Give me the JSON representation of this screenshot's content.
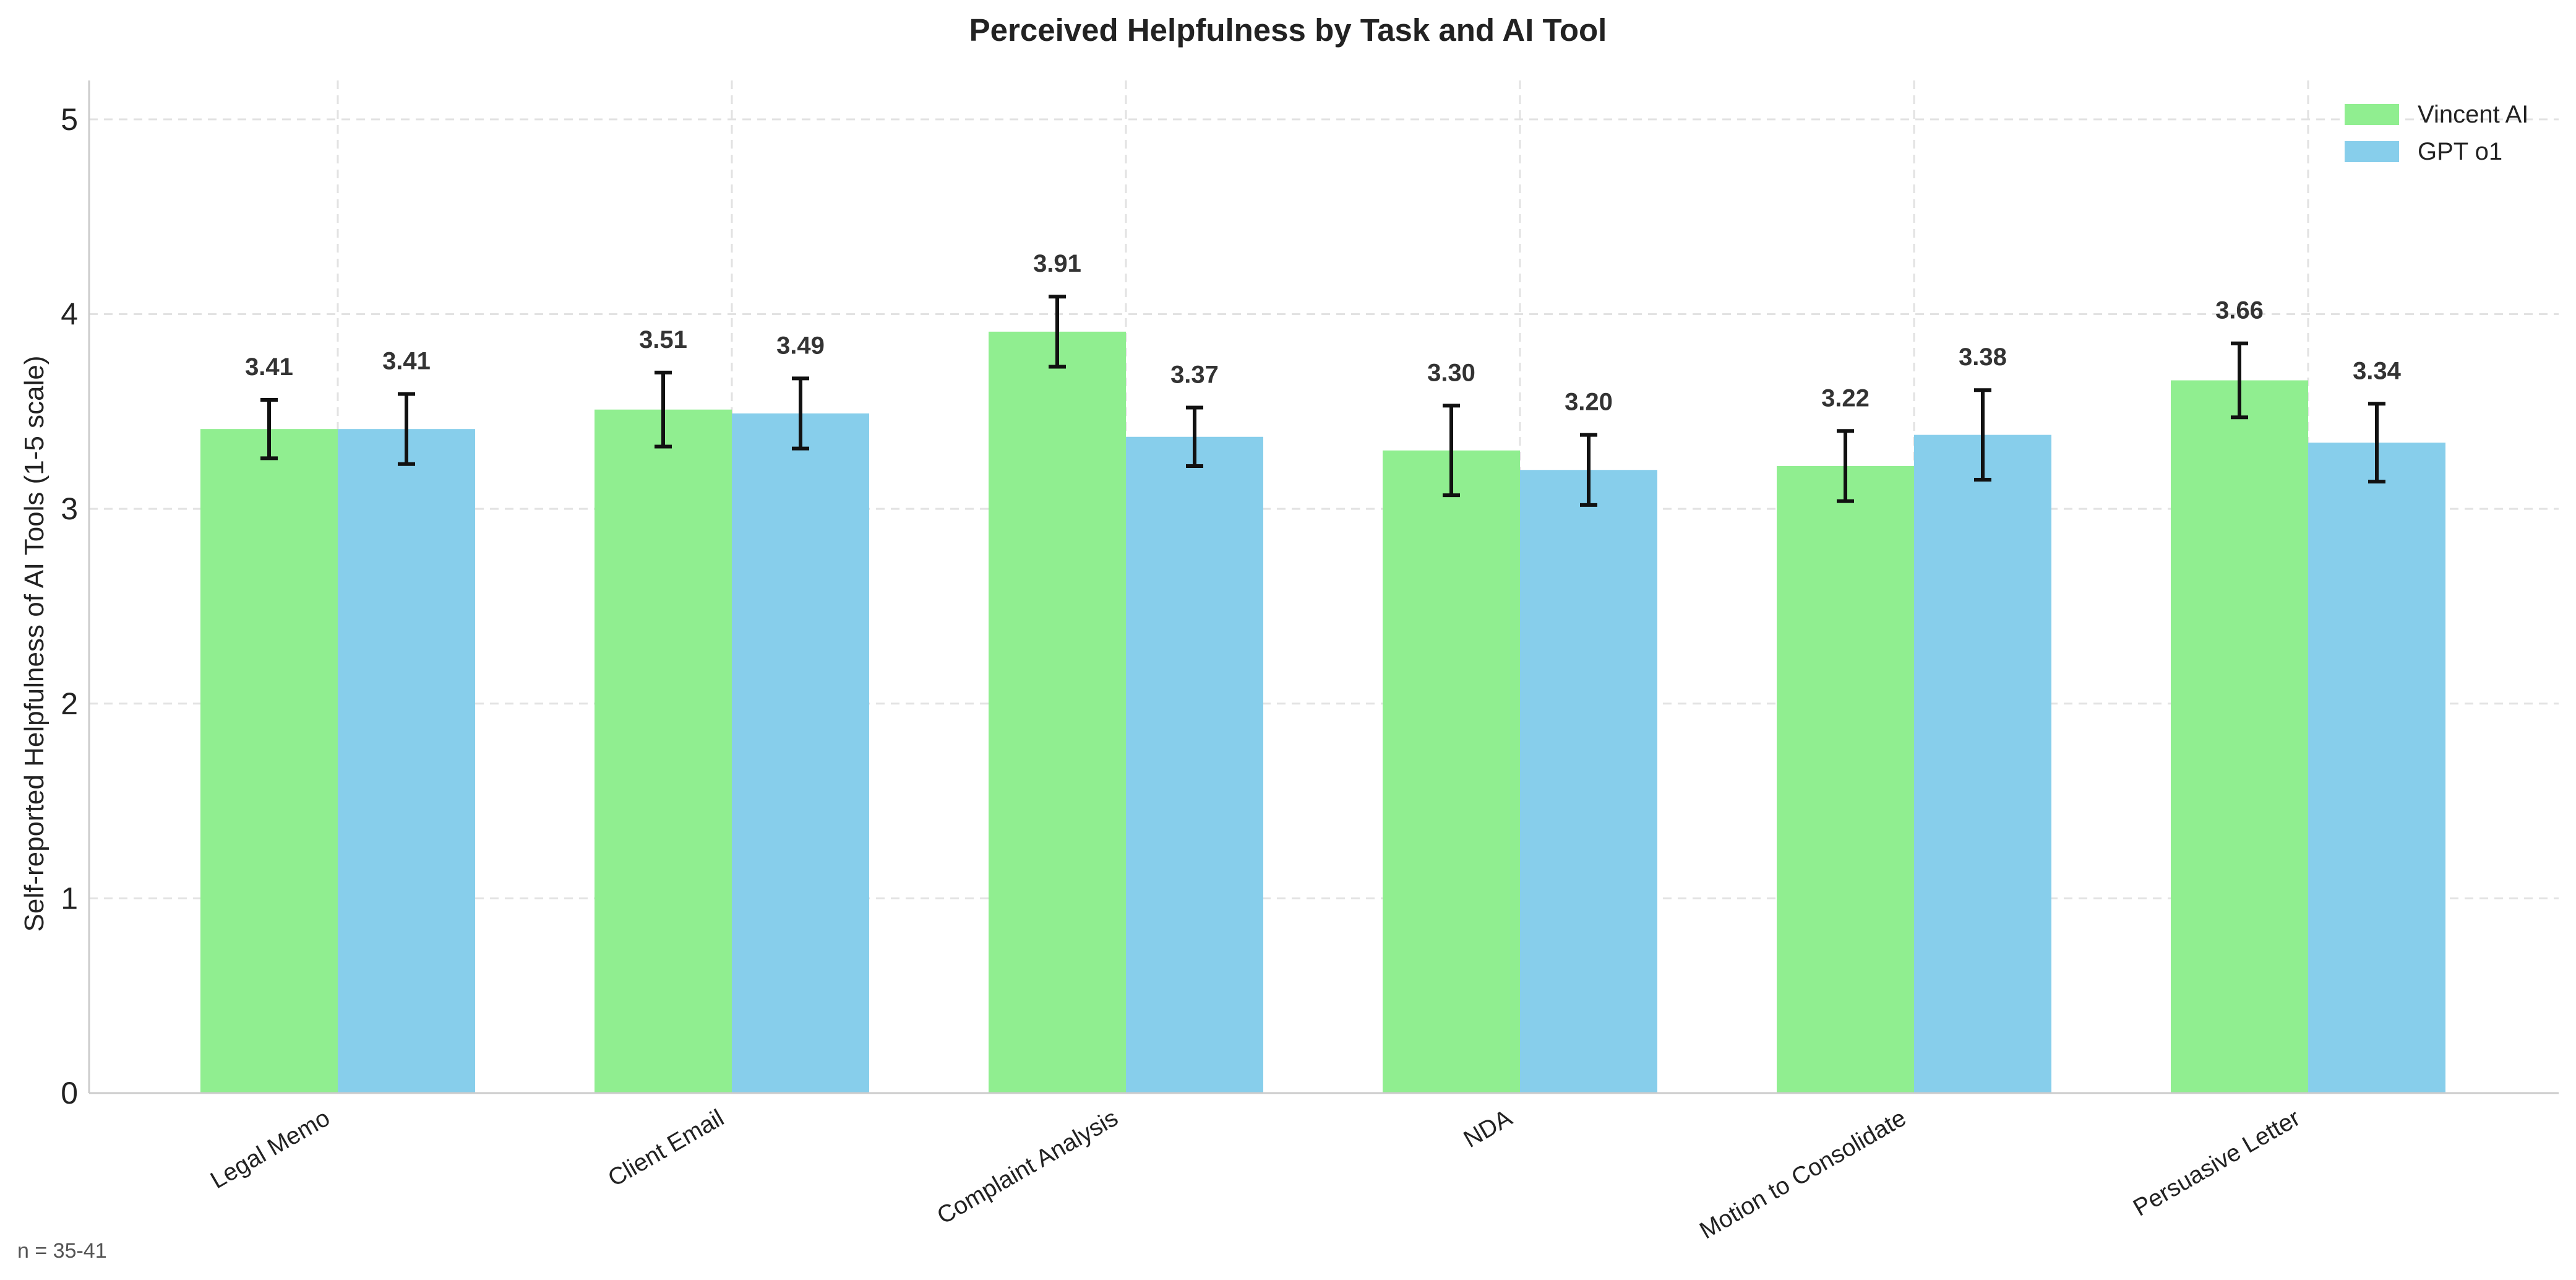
{
  "chart_data": {
    "type": "bar",
    "title": "Perceived Helpfulness by Task and AI Tool",
    "xlabel": "",
    "ylabel": "Self-reported Helpfulness of AI Tools (1-5 scale)",
    "ylim": [
      0,
      5.2
    ],
    "yticks": [
      0,
      1,
      2,
      3,
      4,
      5
    ],
    "grid": true,
    "legend_position": "top-right",
    "categories": [
      "Legal Memo",
      "Client Email",
      "Complaint Analysis",
      "NDA",
      "Motion to Consolidate",
      "Persuasive Letter"
    ],
    "series": [
      {
        "name": "Vincent AI",
        "color": "#90EE90",
        "values": [
          3.41,
          3.51,
          3.91,
          3.3,
          3.22,
          3.66
        ],
        "labels": [
          "3.41",
          "3.51",
          "3.91",
          "3.30",
          "3.22",
          "3.66"
        ],
        "error": [
          0.15,
          0.19,
          0.18,
          0.23,
          0.18,
          0.19
        ]
      },
      {
        "name": "GPT o1",
        "color": "#87CEEB",
        "values": [
          3.41,
          3.49,
          3.37,
          3.2,
          3.38,
          3.34
        ],
        "labels": [
          "3.41",
          "3.49",
          "3.37",
          "3.20",
          "3.38",
          "3.34"
        ],
        "error": [
          0.18,
          0.18,
          0.15,
          0.18,
          0.23,
          0.2
        ]
      }
    ],
    "annotation": "n = 35-41"
  }
}
